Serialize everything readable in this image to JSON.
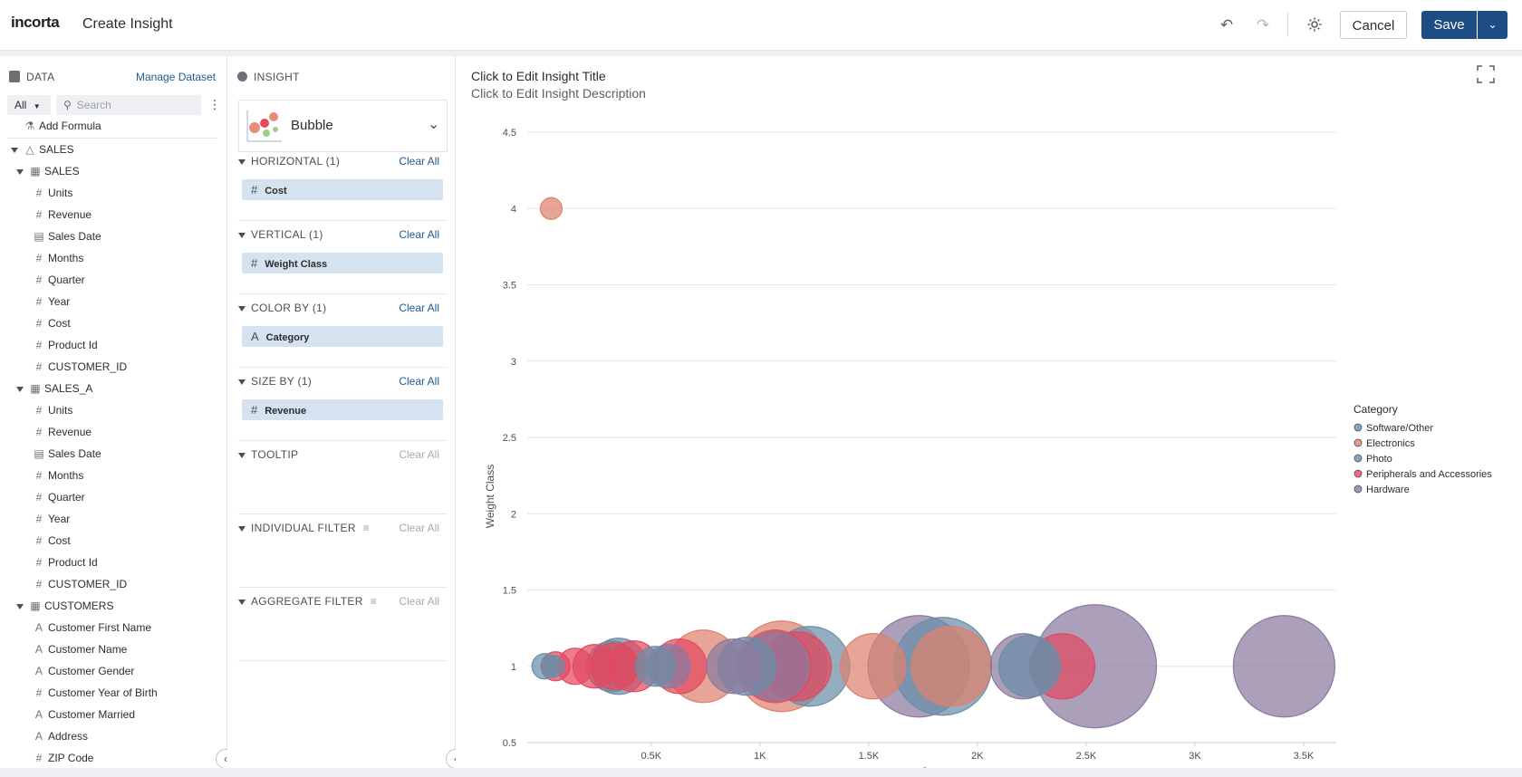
{
  "app": {
    "logo": "incorta",
    "title": "Create Insight"
  },
  "toolbar": {
    "undo_icon": "undo-icon",
    "redo_icon": "redo-icon",
    "settings_icon": "gear-icon",
    "cancel_label": "Cancel",
    "save_label": "Save"
  },
  "data_panel": {
    "header": "DATA",
    "manage_label": "Manage Dataset",
    "filter_value": "All",
    "search_placeholder": "Search",
    "add_formula": "Add Formula",
    "schema": "SALES",
    "tables": [
      {
        "name": "SALES",
        "fields": [
          {
            "type": "#",
            "name": "Units"
          },
          {
            "type": "#",
            "name": "Revenue"
          },
          {
            "type": "date",
            "name": "Sales Date"
          },
          {
            "type": "#",
            "name": "Months"
          },
          {
            "type": "#",
            "name": "Quarter"
          },
          {
            "type": "#",
            "name": "Year"
          },
          {
            "type": "#",
            "name": "Cost"
          },
          {
            "type": "#",
            "name": "Product Id"
          },
          {
            "type": "#",
            "name": "CUSTOMER_ID"
          }
        ]
      },
      {
        "name": "SALES_A",
        "fields": [
          {
            "type": "#",
            "name": "Units"
          },
          {
            "type": "#",
            "name": "Revenue"
          },
          {
            "type": "date",
            "name": "Sales Date"
          },
          {
            "type": "#",
            "name": "Months"
          },
          {
            "type": "#",
            "name": "Quarter"
          },
          {
            "type": "#",
            "name": "Year"
          },
          {
            "type": "#",
            "name": "Cost"
          },
          {
            "type": "#",
            "name": "Product Id"
          },
          {
            "type": "#",
            "name": "CUSTOMER_ID"
          }
        ]
      },
      {
        "name": "CUSTOMERS",
        "fields": [
          {
            "type": "A",
            "name": "Customer First Name"
          },
          {
            "type": "A",
            "name": "Customer Name"
          },
          {
            "type": "A",
            "name": "Customer Gender"
          },
          {
            "type": "#",
            "name": "Customer Year of Birth"
          },
          {
            "type": "A",
            "name": "Customer Married"
          },
          {
            "type": "A",
            "name": "Address"
          },
          {
            "type": "#",
            "name": "ZIP Code"
          }
        ]
      }
    ]
  },
  "insight_panel": {
    "header": "INSIGHT",
    "viz_type": "Bubble",
    "clear_label": "Clear All",
    "sections": [
      {
        "title": "HORIZONTAL (1)",
        "pill": "Cost",
        "pill_type": "#",
        "clear_enabled": true
      },
      {
        "title": "VERTICAL (1)",
        "pill": "Weight Class",
        "pill_type": "#",
        "clear_enabled": true
      },
      {
        "title": "COLOR BY (1)",
        "pill": "Category",
        "pill_type": "A",
        "clear_enabled": true
      },
      {
        "title": "SIZE BY (1)",
        "pill": "Revenue",
        "pill_type": "#",
        "clear_enabled": true
      },
      {
        "title": "TOOLTIP",
        "pill": null,
        "clear_enabled": false
      },
      {
        "title": "INDIVIDUAL FILTER",
        "pill": null,
        "clear_enabled": false
      },
      {
        "title": "AGGREGATE FILTER",
        "pill": null,
        "clear_enabled": false
      }
    ]
  },
  "insight": {
    "title": "Click to Edit Insight Title",
    "description": "Click to Edit Insight Description"
  },
  "chart_data": {
    "type": "scatter",
    "xlabel": "Cost",
    "ylabel": "Weight Class",
    "xlim": [
      -70,
      3650
    ],
    "ylim": [
      0.5,
      4.5
    ],
    "x_ticks": [
      "0.5K",
      "1K",
      "1.5K",
      "2K",
      "2.5K",
      "3K",
      "3.5K"
    ],
    "x_tick_values": [
      500,
      1000,
      1500,
      2000,
      2500,
      3000,
      3500
    ],
    "y_ticks": [
      "0.5",
      "1",
      "1.5",
      "2",
      "2.5",
      "3",
      "3.5",
      "4",
      "4.5"
    ],
    "grid": true,
    "legend": {
      "title": "Category",
      "position": "right"
    },
    "series": [
      {
        "name": "Software/Other",
        "color": "#6b8ea7",
        "points": [
          [
            10,
            1,
            14
          ],
          [
            50,
            1,
            12
          ],
          [
            350,
            1,
            31
          ],
          [
            520,
            1,
            22
          ]
        ]
      },
      {
        "name": "Electronics",
        "color": "#dc826e",
        "points": [
          [
            40,
            4,
            12
          ],
          [
            740,
            1,
            40
          ],
          [
            1100,
            1,
            50
          ],
          [
            1520,
            1,
            36
          ],
          [
            1880,
            1,
            44
          ]
        ]
      },
      {
        "name": "Photo",
        "color": "#6b8ea7",
        "points": [
          [
            320,
            1,
            28
          ],
          [
            940,
            1,
            32
          ],
          [
            1230,
            1,
            44
          ],
          [
            1840,
            1,
            54
          ],
          [
            2240,
            1,
            34
          ]
        ]
      },
      {
        "name": "Peripherals and Accessories",
        "color": "#e3495f",
        "points": [
          [
            60,
            1,
            16
          ],
          [
            150,
            1,
            20
          ],
          [
            240,
            1,
            24
          ],
          [
            330,
            1,
            26
          ],
          [
            420,
            1,
            28
          ],
          [
            630,
            1,
            30
          ],
          [
            1070,
            1,
            40
          ],
          [
            1170,
            1,
            38
          ],
          [
            2390,
            1,
            36
          ]
        ]
      },
      {
        "name": "Hardware",
        "color": "#8b7aa0",
        "points": [
          [
            580,
            1,
            24
          ],
          [
            880,
            1,
            30
          ],
          [
            1070,
            1,
            38
          ],
          [
            1730,
            1,
            56
          ],
          [
            2210,
            1,
            36
          ],
          [
            2540,
            1,
            68
          ],
          [
            3410,
            1,
            56
          ]
        ]
      }
    ]
  }
}
